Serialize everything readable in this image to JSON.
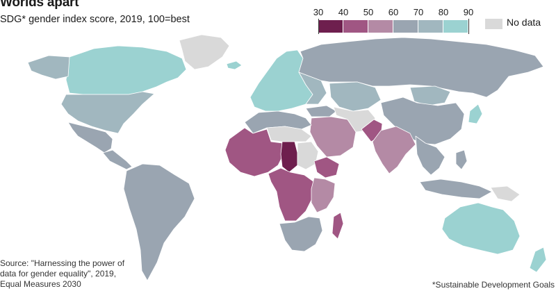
{
  "title": "Worlds apart",
  "subtitle": "SDG* gender index score, 2019, 100=best",
  "legend": {
    "ticks": [
      "30",
      "40",
      "50",
      "60",
      "70",
      "80",
      "90"
    ],
    "colors": [
      "#6e1f4e",
      "#a05683",
      "#b48aa5",
      "#9aa5b1",
      "#a1b7bf",
      "#9bd2d1"
    ],
    "no_data_label": "No data",
    "no_data_color": "#d9d9d9"
  },
  "regions": [
    {
      "name": "Canada",
      "band": "80-90"
    },
    {
      "name": "United States",
      "band": "70-80"
    },
    {
      "name": "Greenland",
      "band": "no data"
    },
    {
      "name": "Mexico and Central America",
      "band": "60-70"
    },
    {
      "name": "South America",
      "band": "60-70"
    },
    {
      "name": "Northern Europe",
      "band": "80-90"
    },
    {
      "name": "Russia",
      "band": "60-70"
    },
    {
      "name": "Kazakhstan",
      "band": "70-80"
    },
    {
      "name": "China",
      "band": "60-70"
    },
    {
      "name": "Mongolia",
      "band": "70-80"
    },
    {
      "name": "Japan",
      "band": "80-90"
    },
    {
      "name": "India",
      "band": "50-60"
    },
    {
      "name": "Pakistan",
      "band": "40-50"
    },
    {
      "name": "Middle East",
      "band": "50-60"
    },
    {
      "name": "North Africa",
      "band": "60-70"
    },
    {
      "name": "Sahara",
      "band": "no data"
    },
    {
      "name": "Chad",
      "band": "30-40"
    },
    {
      "name": "West Africa",
      "band": "40-50"
    },
    {
      "name": "Central Africa",
      "band": "40-50"
    },
    {
      "name": "East Africa",
      "band": "50-60"
    },
    {
      "name": "Southern Africa",
      "band": "60-70"
    },
    {
      "name": "Madagascar",
      "band": "40-50"
    },
    {
      "name": "Southeast Asia",
      "band": "60-70"
    },
    {
      "name": "Australia",
      "band": "80-90"
    },
    {
      "name": "New Zealand",
      "band": "80-90"
    }
  ],
  "source": "Source: \"Harnessing the power of data for gender equality\", 2019, Equal Measures 2030",
  "footnote": "*Sustainable Development Goals"
}
